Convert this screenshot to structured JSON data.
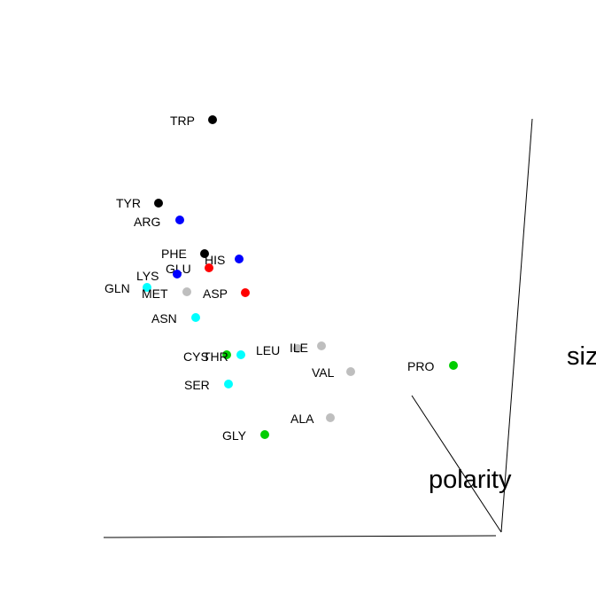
{
  "chart_data": {
    "type": "scatter",
    "axes": {
      "polarity_label": "polarity",
      "size_label": "siz"
    },
    "points": [
      {
        "name": "TRP",
        "color": "#000000"
      },
      {
        "name": "TYR",
        "color": "#000000"
      },
      {
        "name": "ARG",
        "color": "#0000ff"
      },
      {
        "name": "PHE",
        "color": "#000000"
      },
      {
        "name": "HIS",
        "color": "#0000ff"
      },
      {
        "name": "GLU",
        "color": "#ff0000"
      },
      {
        "name": "LYS",
        "color": "#0000ff"
      },
      {
        "name": "GLN",
        "color": "#00ffff"
      },
      {
        "name": "MET",
        "color": "#bebebe"
      },
      {
        "name": "ASP",
        "color": "#ff0000"
      },
      {
        "name": "ASN",
        "color": "#00ffff"
      },
      {
        "name": "CYS",
        "color": "#00cd00"
      },
      {
        "name": "THR",
        "color": "#00ffff"
      },
      {
        "name": "LEU",
        "color": "#bebebe"
      },
      {
        "name": "ILE",
        "color": "#bebebe"
      },
      {
        "name": "VAL",
        "color": "#bebebe"
      },
      {
        "name": "PRO",
        "color": "#00cd00"
      },
      {
        "name": "SER",
        "color": "#00ffff"
      },
      {
        "name": "ALA",
        "color": "#bebebe"
      },
      {
        "name": "GLY",
        "color": "#00cd00"
      }
    ]
  }
}
